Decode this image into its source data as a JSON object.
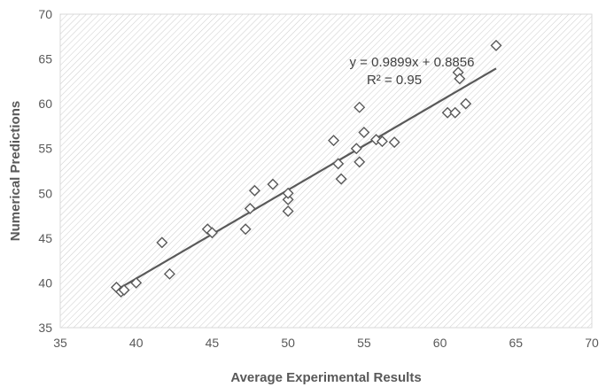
{
  "chart_data": {
    "type": "scatter",
    "xlabel": "Average Experimental Results",
    "ylabel": "Numerical Predictions",
    "xlim": [
      35,
      70
    ],
    "ylim": [
      35,
      70
    ],
    "xticks": [
      "35",
      "40",
      "45",
      "50",
      "55",
      "60",
      "65",
      "70"
    ],
    "yticks": [
      "35",
      "40",
      "45",
      "50",
      "55",
      "60",
      "65",
      "70"
    ],
    "grid": false,
    "background": "diagonal-hatch",
    "marker": "diamond-open",
    "marker_color": "#595959",
    "trendline_color": "#595959",
    "points": [
      [
        38.7,
        39.5
      ],
      [
        39.0,
        39.0
      ],
      [
        39.2,
        39.2
      ],
      [
        40.0,
        40.0
      ],
      [
        41.7,
        44.5
      ],
      [
        42.2,
        41.0
      ],
      [
        44.7,
        46.0
      ],
      [
        45.0,
        45.6
      ],
      [
        47.2,
        46.0
      ],
      [
        47.5,
        48.3
      ],
      [
        47.8,
        50.3
      ],
      [
        49.0,
        51.0
      ],
      [
        50.0,
        48.0
      ],
      [
        50.0,
        49.3
      ],
      [
        50.0,
        50.0
      ],
      [
        53.0,
        55.9
      ],
      [
        53.3,
        53.3
      ],
      [
        53.5,
        51.6
      ],
      [
        54.5,
        55.0
      ],
      [
        54.7,
        59.6
      ],
      [
        54.7,
        53.5
      ],
      [
        55.0,
        56.8
      ],
      [
        55.8,
        56.0
      ],
      [
        56.2,
        55.8
      ],
      [
        57.0,
        55.7
      ],
      [
        60.5,
        59.0
      ],
      [
        61.0,
        59.0
      ],
      [
        61.2,
        63.5
      ],
      [
        61.3,
        62.8
      ],
      [
        61.7,
        60.0
      ],
      [
        63.7,
        66.5
      ]
    ],
    "trendline": {
      "slope": 0.9899,
      "intercept": 0.8856,
      "x_range": [
        38.7,
        63.7
      ],
      "equation": "y = 0.9899x + 0.8856",
      "r_squared": "R² = 0.95"
    }
  }
}
